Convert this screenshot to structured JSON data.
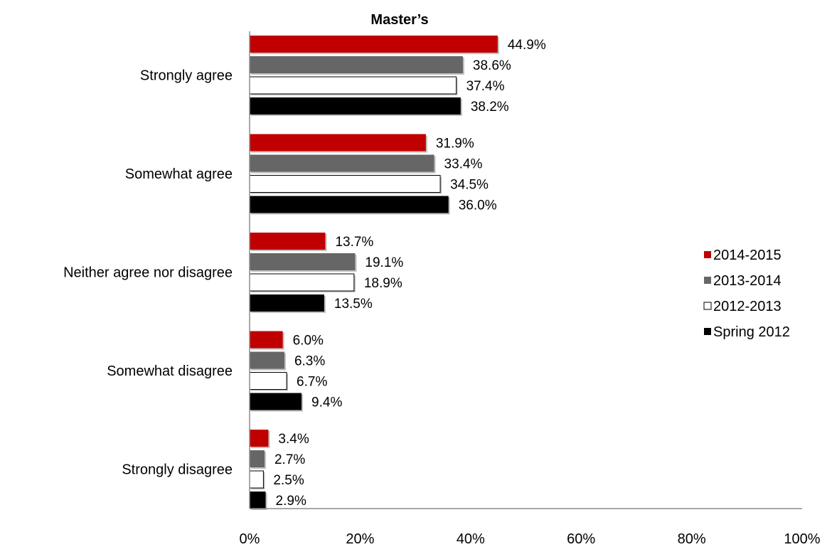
{
  "chart_data": {
    "type": "bar",
    "orientation": "horizontal",
    "title": "Master’s",
    "categories": [
      "Strongly agree",
      "Somewhat agree",
      "Neither agree nor disagree",
      "Somewhat disagree",
      "Strongly disagree"
    ],
    "series": [
      {
        "name": "2014-2015",
        "color": "#c00000",
        "values": [
          44.9,
          31.9,
          13.7,
          6.0,
          3.4
        ]
      },
      {
        "name": "2013-2014",
        "color": "#666666",
        "values": [
          38.6,
          33.4,
          19.1,
          6.3,
          2.7
        ]
      },
      {
        "name": "2012-2013",
        "color": "#ffffff",
        "values": [
          37.4,
          34.5,
          18.9,
          6.7,
          2.5
        ]
      },
      {
        "name": "Spring 2012",
        "color": "#000000",
        "values": [
          38.2,
          36.0,
          13.5,
          9.4,
          2.9
        ]
      }
    ],
    "value_suffix": "%",
    "xlim": [
      0,
      100
    ],
    "xticks": [
      "0%",
      "20%",
      "40%",
      "60%",
      "80%",
      "100%"
    ],
    "xlabel": "",
    "ylabel": "",
    "grid": false,
    "legend_position": "right"
  }
}
